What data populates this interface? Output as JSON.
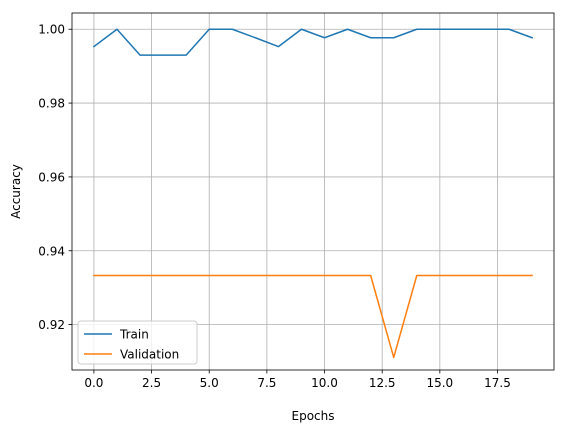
{
  "chart_data": {
    "type": "line",
    "title": "",
    "xlabel": "Epochs",
    "ylabel": "Accuracy",
    "xlim": [
      -0.95,
      19.95
    ],
    "ylim": [
      0.9077,
      1.0044
    ],
    "xticks": [
      0.0,
      2.5,
      5.0,
      7.5,
      10.0,
      12.5,
      15.0,
      17.5
    ],
    "xtick_labels": [
      "0.0",
      "2.5",
      "5.0",
      "7.5",
      "10.0",
      "12.5",
      "15.0",
      "17.5"
    ],
    "yticks": [
      0.92,
      0.94,
      0.96,
      0.98,
      1.0
    ],
    "ytick_labels": [
      "0.92",
      "0.94",
      "0.96",
      "0.98",
      "1.00"
    ],
    "grid": true,
    "legend_position": "lower-left",
    "x": [
      0,
      1,
      2,
      3,
      4,
      5,
      6,
      7,
      8,
      9,
      10,
      11,
      12,
      13,
      14,
      15,
      16,
      17,
      18,
      19
    ],
    "series": [
      {
        "name": "Train",
        "color": "#1f77b4",
        "values": [
          0.9953,
          1.0,
          0.993,
          0.993,
          0.993,
          1.0,
          1.0,
          0.9977,
          0.9953,
          1.0,
          0.9977,
          1.0,
          0.9977,
          0.9977,
          1.0,
          1.0,
          1.0,
          1.0,
          1.0,
          0.9977
        ]
      },
      {
        "name": "Validation",
        "color": "#ff7f0e",
        "values": [
          0.9333,
          0.9333,
          0.9333,
          0.9333,
          0.9333,
          0.9333,
          0.9333,
          0.9333,
          0.9333,
          0.9333,
          0.9333,
          0.9333,
          0.9333,
          0.9111,
          0.9333,
          0.9333,
          0.9333,
          0.9333,
          0.9333,
          0.9333
        ]
      }
    ]
  }
}
